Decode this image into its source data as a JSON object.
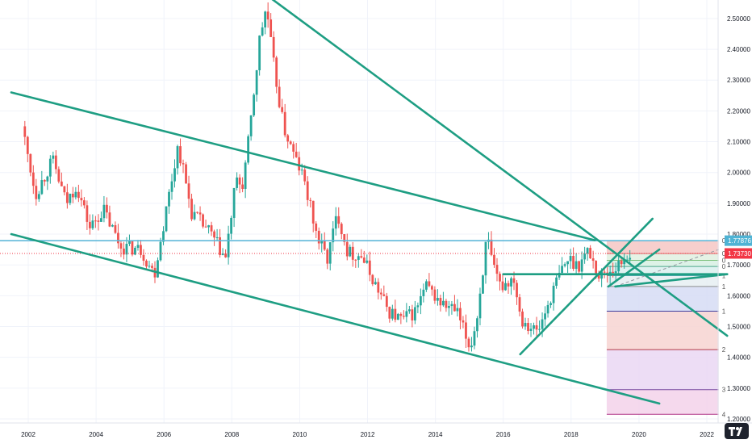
{
  "chart_data": {
    "type": "candlestick",
    "x_range": [
      2001.5,
      2022.6
    ],
    "y_range": [
      1.2,
      2.57
    ],
    "grid": true,
    "x_ticks": [
      "2002",
      "2004",
      "2006",
      "2008",
      "2010",
      "2012",
      "2014",
      "2016",
      "2018",
      "2020",
      "2022"
    ],
    "y_ticks": [
      "1.20000",
      "1.30000",
      "1.40000",
      "1.50000",
      "1.60000",
      "1.70000",
      "1.80000",
      "1.90000",
      "2.00000",
      "2.10000",
      "2.20000",
      "2.30000",
      "2.40000",
      "2.50000"
    ],
    "price_labels": [
      {
        "label": "1.77876",
        "value": 1.77876,
        "color": "#4fb3d4"
      },
      {
        "label": "1.73730",
        "value": 1.7373,
        "color": "#f23645"
      }
    ],
    "colors": {
      "up": "#26a69a",
      "down": "#ef5350",
      "trendline": "#1e9e83",
      "horizontal": "#5fb8d9",
      "current": "#f23645"
    },
    "anchors": [
      [
        2001.9,
        2.15
      ],
      [
        2002.3,
        1.93
      ],
      [
        2002.8,
        2.04
      ],
      [
        2003.2,
        1.9
      ],
      [
        2003.5,
        1.96
      ],
      [
        2003.9,
        1.82
      ],
      [
        2004.3,
        1.88
      ],
      [
        2004.8,
        1.76
      ],
      [
        2005.4,
        1.75
      ],
      [
        2005.8,
        1.67
      ],
      [
        2006.5,
        2.09
      ],
      [
        2006.9,
        1.87
      ],
      [
        2007.4,
        1.81
      ],
      [
        2007.9,
        1.72
      ],
      [
        2008.2,
        1.97
      ],
      [
        2008.4,
        1.96
      ],
      [
        2008.6,
        2.12
      ],
      [
        2008.9,
        2.43
      ],
      [
        2009.1,
        2.54
      ],
      [
        2009.3,
        2.36
      ],
      [
        2009.6,
        2.15
      ],
      [
        2009.9,
        2.06
      ],
      [
        2010.2,
        1.98
      ],
      [
        2010.6,
        1.79
      ],
      [
        2010.9,
        1.72
      ],
      [
        2011.2,
        1.87
      ],
      [
        2011.5,
        1.74
      ],
      [
        2011.9,
        1.73
      ],
      [
        2012.3,
        1.64
      ],
      [
        2012.7,
        1.55
      ],
      [
        2013.1,
        1.52
      ],
      [
        2013.5,
        1.55
      ],
      [
        2013.8,
        1.63
      ],
      [
        2014.3,
        1.57
      ],
      [
        2014.7,
        1.55
      ],
      [
        2015.1,
        1.43
      ],
      [
        2015.3,
        1.52
      ],
      [
        2015.6,
        1.79
      ],
      [
        2015.8,
        1.68
      ],
      [
        2016.0,
        1.63
      ],
      [
        2016.4,
        1.66
      ],
      [
        2016.6,
        1.53
      ],
      [
        2017.1,
        1.48
      ],
      [
        2017.4,
        1.57
      ],
      [
        2017.7,
        1.66
      ],
      [
        2018.0,
        1.72
      ],
      [
        2018.3,
        1.7
      ],
      [
        2018.6,
        1.75
      ],
      [
        2018.9,
        1.66
      ],
      [
        2019.2,
        1.68
      ],
      [
        2019.5,
        1.7
      ],
      [
        2019.75,
        1.737
      ]
    ],
    "trendlines": [
      {
        "from": [
          2001.5,
          2.26
        ],
        "to": [
          2018.7,
          1.78
        ]
      },
      {
        "from": [
          2001.5,
          1.8
        ],
        "to": [
          2020.6,
          1.25
        ]
      },
      {
        "from": [
          2009.1,
          2.57
        ],
        "to": [
          2022.6,
          1.47
        ]
      },
      {
        "from": [
          2016.0,
          1.67
        ],
        "to": [
          2022.6,
          1.67
        ]
      },
      {
        "from": [
          2016.5,
          1.41
        ],
        "to": [
          2020.4,
          1.85
        ]
      },
      {
        "from": [
          2019.1,
          1.63
        ],
        "to": [
          2020.6,
          1.75
        ]
      },
      {
        "from": [
          2019.3,
          1.63
        ],
        "to": [
          2022.6,
          1.67
        ]
      }
    ],
    "horizontal_lines": [
      {
        "value": 1.77876,
        "style": "solid"
      },
      {
        "value": 1.7373,
        "style": "dotted"
      }
    ],
    "fib_levels": [
      {
        "label": "0",
        "value": 1.7787
      },
      {
        "label": "0",
        "value": 1.737
      },
      {
        "label": "0",
        "value": 1.715
      },
      {
        "label": "0",
        "value": 1.695
      },
      {
        "label": "1",
        "value": 1.665
      },
      {
        "label": "1",
        "value": 1.63
      },
      {
        "label": "1",
        "value": 1.55
      },
      {
        "label": "2",
        "value": 1.425
      },
      {
        "label": "3",
        "value": 1.295
      },
      {
        "label": "4",
        "value": 1.215
      }
    ],
    "fib_range": [
      2019.05,
      2022.35
    ],
    "fib_colors": [
      "#f6c7c4",
      "#e0f0e0",
      "#d7f0e3",
      "#d9f0ef",
      "#e6eef2",
      "#d6dcf5",
      "#f7d3d1",
      "#ead7f3",
      "#f3d2ea"
    ],
    "fib_line_colors": [
      "#b2b5be",
      "#e06a6a",
      "#7ac07a",
      "#4aa88a",
      "#4aa8a8",
      "#8c8c8c",
      "#3d3d9e",
      "#b23a48",
      "#7a4ba0",
      "#b2398a"
    ]
  }
}
